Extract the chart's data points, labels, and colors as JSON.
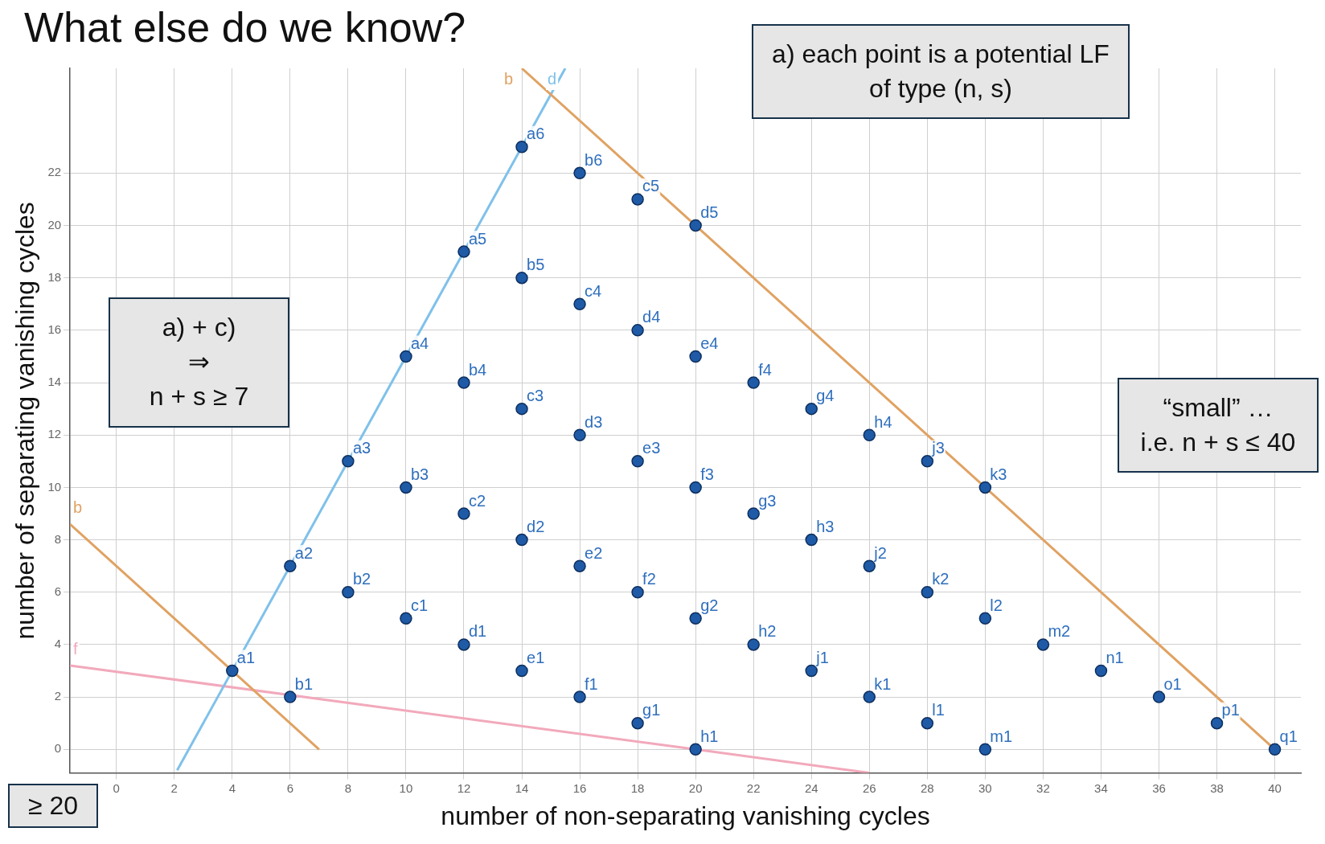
{
  "chart_data": {
    "type": "scatter",
    "title": "What else do we know?",
    "xlabel": "number of non-separating vanishing cycles",
    "ylabel": "number of separating vanishing cycles",
    "xlim": [
      -1.6,
      40.9
    ],
    "ylim": [
      -0.9,
      26
    ],
    "xticks": [
      0,
      2,
      4,
      6,
      8,
      10,
      12,
      14,
      16,
      18,
      20,
      22,
      24,
      26,
      28,
      30,
      32,
      34,
      36,
      38,
      40
    ],
    "yticks": [
      0,
      2,
      4,
      6,
      8,
      10,
      12,
      14,
      16,
      18,
      20,
      22
    ],
    "grid": true,
    "marker": "circle",
    "series": [
      {
        "color": "#1f5aa6",
        "x": [
          4,
          6,
          8,
          10,
          12,
          14,
          6,
          8,
          10,
          12,
          14,
          16,
          10,
          12,
          14,
          16,
          18,
          12,
          14,
          16,
          18,
          20,
          14,
          16,
          18,
          20,
          16,
          18,
          20,
          22,
          18,
          20,
          22,
          24,
          20,
          22,
          24,
          26,
          24,
          26,
          28,
          26,
          28,
          30,
          28,
          30,
          30,
          32,
          34,
          36,
          38,
          40
        ],
        "values": [
          3,
          7,
          11,
          15,
          19,
          23,
          2,
          6,
          10,
          14,
          18,
          22,
          5,
          9,
          13,
          17,
          21,
          4,
          8,
          12,
          16,
          20,
          3,
          7,
          11,
          15,
          2,
          6,
          10,
          14,
          1,
          5,
          9,
          13,
          0,
          4,
          8,
          12,
          3,
          7,
          11,
          2,
          6,
          10,
          1,
          5,
          0,
          4,
          3,
          2,
          1,
          0
        ]
      },
      {
        "name": "b",
        "type": "line",
        "marker": "none",
        "color": "#e0a262",
        "x": [
          -1.6,
          7
        ],
        "values": [
          8.6,
          0
        ]
      },
      {
        "name": "b",
        "type": "line",
        "marker": "none",
        "color": "#e0a262",
        "x": [
          14,
          40
        ],
        "values": [
          26,
          0
        ]
      },
      {
        "name": "d",
        "type": "line",
        "marker": "none",
        "color": "#7fc1ea",
        "x": [
          15.5,
          2.1
        ],
        "values": [
          26,
          -0.8
        ]
      },
      {
        "name": "f",
        "type": "line",
        "marker": "none",
        "color": "#f2a9bb",
        "x": [
          -1.6,
          20,
          26
        ],
        "values": [
          3.2,
          0,
          -0.9
        ]
      }
    ],
    "annotations": [
      "a) each point is a potential LF of type (n, s)",
      "a)   + c)\n⇒\nn + s ≥ 7",
      "“small” …\ni.e. n + s ≤ 40",
      "≥ 20",
      {
        "text": "a1",
        "x": 4,
        "y": 3
      },
      {
        "text": "a2",
        "x": 6,
        "y": 7
      },
      {
        "text": "a3",
        "x": 8,
        "y": 11
      },
      {
        "text": "a4",
        "x": 10,
        "y": 15
      },
      {
        "text": "a5",
        "x": 12,
        "y": 19
      },
      {
        "text": "a6",
        "x": 14,
        "y": 23
      },
      {
        "text": "b1",
        "x": 6,
        "y": 2
      },
      {
        "text": "b2",
        "x": 8,
        "y": 6
      },
      {
        "text": "b3",
        "x": 10,
        "y": 10
      },
      {
        "text": "b4",
        "x": 12,
        "y": 14
      },
      {
        "text": "b5",
        "x": 14,
        "y": 18
      },
      {
        "text": "b6",
        "x": 16,
        "y": 22
      },
      {
        "text": "c1",
        "x": 10,
        "y": 5
      },
      {
        "text": "c2",
        "x": 12,
        "y": 9
      },
      {
        "text": "c3",
        "x": 14,
        "y": 13
      },
      {
        "text": "c4",
        "x": 16,
        "y": 17
      },
      {
        "text": "c5",
        "x": 18,
        "y": 21
      },
      {
        "text": "d1",
        "x": 12,
        "y": 4
      },
      {
        "text": "d2",
        "x": 14,
        "y": 8
      },
      {
        "text": "d3",
        "x": 16,
        "y": 12
      },
      {
        "text": "d4",
        "x": 18,
        "y": 16
      },
      {
        "text": "d5",
        "x": 20,
        "y": 20
      },
      {
        "text": "e1",
        "x": 14,
        "y": 3
      },
      {
        "text": "e2",
        "x": 16,
        "y": 7
      },
      {
        "text": "e3",
        "x": 18,
        "y": 11
      },
      {
        "text": "e4",
        "x": 20,
        "y": 15
      },
      {
        "text": "f1",
        "x": 16,
        "y": 2
      },
      {
        "text": "f2",
        "x": 18,
        "y": 6
      },
      {
        "text": "f3",
        "x": 20,
        "y": 10
      },
      {
        "text": "f4",
        "x": 22,
        "y": 14
      },
      {
        "text": "g1",
        "x": 18,
        "y": 1
      },
      {
        "text": "g2",
        "x": 20,
        "y": 5
      },
      {
        "text": "g3",
        "x": 22,
        "y": 9
      },
      {
        "text": "g4",
        "x": 24,
        "y": 13
      },
      {
        "text": "h1",
        "x": 20,
        "y": 0
      },
      {
        "text": "h2",
        "x": 22,
        "y": 4
      },
      {
        "text": "h3",
        "x": 24,
        "y": 8
      },
      {
        "text": "h4",
        "x": 26,
        "y": 12
      },
      {
        "text": "j1",
        "x": 24,
        "y": 3
      },
      {
        "text": "j2",
        "x": 26,
        "y": 7
      },
      {
        "text": "j3",
        "x": 28,
        "y": 11
      },
      {
        "text": "k1",
        "x": 26,
        "y": 2
      },
      {
        "text": "k2",
        "x": 28,
        "y": 6
      },
      {
        "text": "k3",
        "x": 30,
        "y": 10
      },
      {
        "text": "l1",
        "x": 28,
        "y": 1
      },
      {
        "text": "l2",
        "x": 30,
        "y": 5
      },
      {
        "text": "m1",
        "x": 30,
        "y": 0
      },
      {
        "text": "m2",
        "x": 32,
        "y": 4
      },
      {
        "text": "n1",
        "x": 34,
        "y": 3
      },
      {
        "text": "o1",
        "x": 36,
        "y": 2
      },
      {
        "text": "p1",
        "x": 38,
        "y": 1
      },
      {
        "text": "q1",
        "x": 40,
        "y": 0
      }
    ]
  }
}
